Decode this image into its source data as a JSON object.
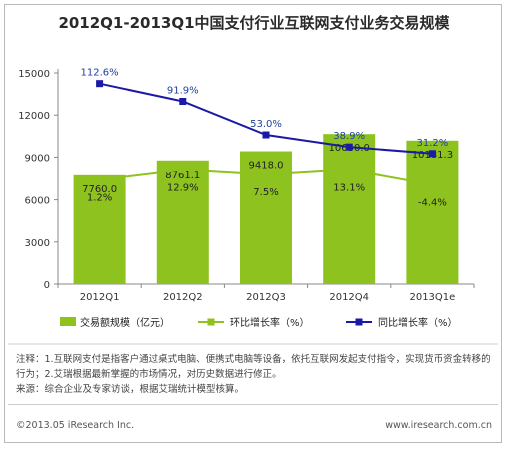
{
  "title": "2012Q1-2013Q1中国支付行业互联网支付业务交易规模",
  "chart_data": {
    "type": "bar",
    "categories": [
      "2012Q1",
      "2012Q2",
      "2012Q3",
      "2012Q4",
      "2013Q1e"
    ],
    "ylim": [
      0,
      15000
    ],
    "yticks": [
      "0",
      "3000",
      "6000",
      "9000",
      "12000",
      "15000"
    ],
    "series": [
      {
        "name": "交易额规模（亿元）",
        "kind": "bar",
        "color": "#8dc21f",
        "values": [
          7760.0,
          8761.1,
          9418.0,
          10650.0,
          10181.3
        ],
        "labels": [
          "7760.0",
          "8761.1",
          "9418.0",
          "10650.0",
          "10181.3"
        ]
      },
      {
        "name": "环比增长率（%）",
        "kind": "line",
        "color": "#8dc21f",
        "values": [
          1.2,
          12.9,
          7.5,
          13.1,
          -4.4
        ],
        "labels": [
          "1.2%",
          "12.9%",
          "7.5%",
          "13.1%",
          "-4.4%"
        ]
      },
      {
        "name": "同比增长率（%）",
        "kind": "line",
        "color": "#1a1aa6",
        "values": [
          112.6,
          91.9,
          53.0,
          38.9,
          31.2
        ],
        "labels": [
          "112.6%",
          "91.9%",
          "53.0%",
          "38.9%",
          "31.2%"
        ]
      }
    ]
  },
  "notes": [
    "注释：1.互联网支付是指客户通过桌式电脑、便携式电脑等设备，依托互联网发起支付指令，实现货币资金转移的行为；2.艾瑞根据最新掌握的市场情况，对历史数据进行修正。",
    "来源：综合企业及专家访谈，根据艾瑞统计模型核算。"
  ],
  "footer": {
    "copyright": "©2013.05 iResearch Inc.",
    "url": "www.iresearch.com.cn"
  }
}
